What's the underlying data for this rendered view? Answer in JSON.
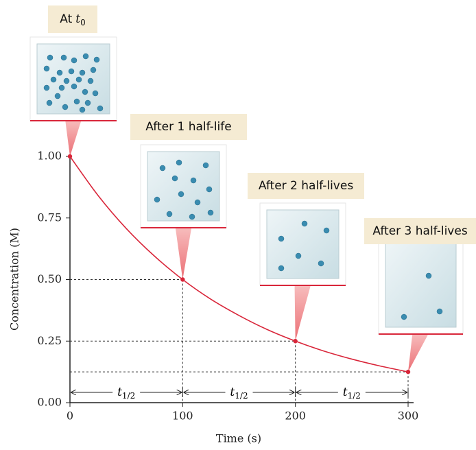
{
  "chart_data": {
    "type": "line",
    "xlabel": "Time (s)",
    "ylabel": "Concentration (M)",
    "x": [
      0,
      25,
      50,
      75,
      100,
      125,
      150,
      175,
      200,
      225,
      250,
      275,
      300
    ],
    "series": [
      {
        "color": "#d9263a",
        "values": [
          1.0,
          0.841,
          0.707,
          0.595,
          0.5,
          0.42,
          0.354,
          0.297,
          0.25,
          0.21,
          0.177,
          0.149,
          0.125
        ]
      }
    ],
    "points": {
      "color": "#d9263a",
      "x": [
        0,
        100,
        200,
        300
      ],
      "values": [
        1.0,
        0.5,
        0.25,
        0.125
      ]
    },
    "xlim": [
      0,
      300
    ],
    "xticks": [
      0,
      100,
      200,
      300
    ],
    "ylim": [
      0,
      1
    ],
    "yticks": [
      {
        "value": 0,
        "label": "0.00"
      },
      {
        "value": 0.25,
        "label": "0.25"
      },
      {
        "value": 0.5,
        "label": "0.50"
      },
      {
        "value": 0.75,
        "label": "0.75"
      },
      {
        "value": 1,
        "label": "1.00"
      }
    ],
    "annotations": [
      {
        "text": "At",
        "symbol": "t",
        "subscript": "0"
      },
      {
        "text": "After 1 half-life"
      },
      {
        "text": "After 2 half-lives"
      },
      {
        "text": "After 3 half-lives"
      }
    ],
    "half_life_label": {
      "symbol": "t",
      "subscript": "1/2"
    }
  }
}
